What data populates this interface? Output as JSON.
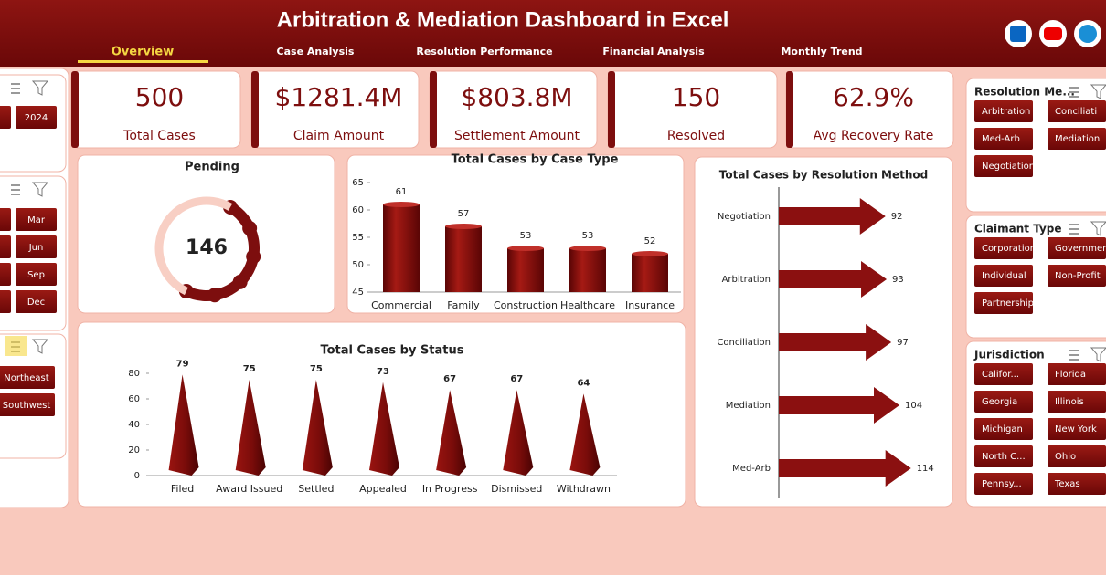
{
  "header": {
    "title": "Arbitration & Mediation Dashboard in Excel"
  },
  "tabs": [
    "Overview",
    "Case Analysis",
    "Resolution Performance",
    "Financial Analysis",
    "Monthly Trend"
  ],
  "kpis": [
    {
      "value": "500",
      "label": "Total Cases"
    },
    {
      "value": "$1281.4M",
      "label": "Claim Amount"
    },
    {
      "value": "$803.8M",
      "label": "Settlement Amount"
    },
    {
      "value": "150",
      "label": "Resolved"
    },
    {
      "value": "62.9%",
      "label": "Avg Recovery Rate"
    }
  ],
  "left_slicers": [
    {
      "items": [
        "2024"
      ]
    },
    {
      "items": [
        "Mar",
        "Jun",
        "Sep",
        "Dec"
      ]
    },
    {
      "items": [
        "Northeast",
        "Southwest"
      ]
    }
  ],
  "right_slicers": [
    {
      "title": "Resolution Me...",
      "items": [
        "Arbitration",
        "Conciliati",
        "Med-Arb",
        "Mediation",
        "Negotiation"
      ]
    },
    {
      "title": "Claimant Type",
      "items": [
        "Corporation",
        "Governmen",
        "Individual",
        "Non-Profit",
        "Partnership"
      ]
    },
    {
      "title": "Jurisdiction",
      "items": [
        "Califor...",
        "Florida",
        "Georgia",
        "Illinois",
        "Michigan",
        "New York",
        "North C...",
        "Ohio",
        "Pennsy...",
        "Texas"
      ]
    }
  ],
  "chart_data": [
    {
      "type": "donut",
      "title": "Pending",
      "values": [
        146,
        154
      ],
      "colors": [
        "#7d0e0e",
        "#f8cfc4"
      ]
    },
    {
      "type": "bar",
      "title": "Total Cases by Case Type",
      "shape": "cylinder",
      "color": "#8b1010",
      "categories": [
        "Commercial",
        "Family",
        "Construction",
        "Healthcare",
        "Insurance"
      ],
      "values": [
        61,
        57,
        53,
        53,
        52
      ],
      "ylim": [
        45,
        65
      ],
      "yticks": [
        45,
        50,
        55,
        60,
        65
      ],
      "grid": false
    },
    {
      "type": "bar",
      "title": "Total Cases by Status",
      "shape": "cone",
      "color": "#8b1010",
      "categories": [
        "Filed",
        "Award Issued",
        "Settled",
        "Appealed",
        "In Progress",
        "Dismissed",
        "Withdrawn"
      ],
      "values": [
        79,
        75,
        75,
        73,
        67,
        67,
        64
      ],
      "ylim": [
        0,
        80
      ],
      "yticks": [
        0,
        20,
        40,
        60,
        80
      ],
      "grid": false
    },
    {
      "type": "bar",
      "orientation": "horizontal",
      "title": "Total Cases by Resolution Method",
      "shape": "arrow",
      "color": "#8b1010",
      "categories": [
        "Negotiation",
        "Arbitration",
        "Conciliation",
        "Mediation",
        "Med-Arb"
      ],
      "values": [
        92,
        93,
        97,
        104,
        114
      ],
      "xlim": [
        0,
        130
      ],
      "grid": false
    }
  ]
}
